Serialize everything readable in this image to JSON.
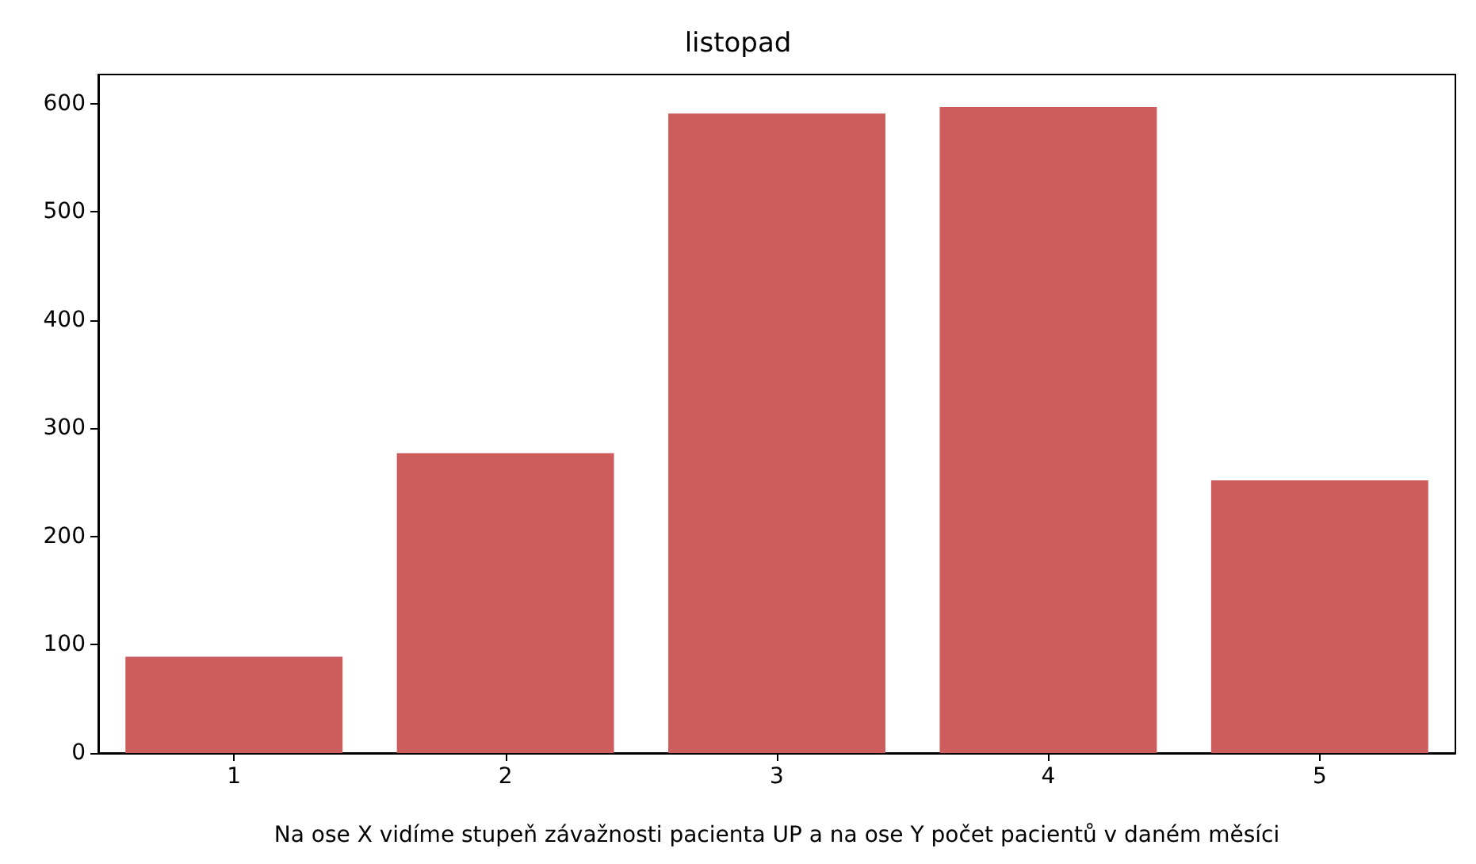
{
  "chart_data": {
    "type": "bar",
    "title": "listopad",
    "xlabel": "Na ose X vidíme stupeň závažnosti pacienta UP a na ose Y počet pacientů v daném měsíci",
    "categories": [
      "1",
      "2",
      "3",
      "4",
      "5"
    ],
    "values": [
      89,
      277,
      591,
      597,
      252
    ],
    "color": "#cd5c5c",
    "ylim": [
      0,
      627
    ],
    "yticks": [
      0,
      100,
      200,
      300,
      400,
      500,
      600
    ],
    "grid": false
  }
}
